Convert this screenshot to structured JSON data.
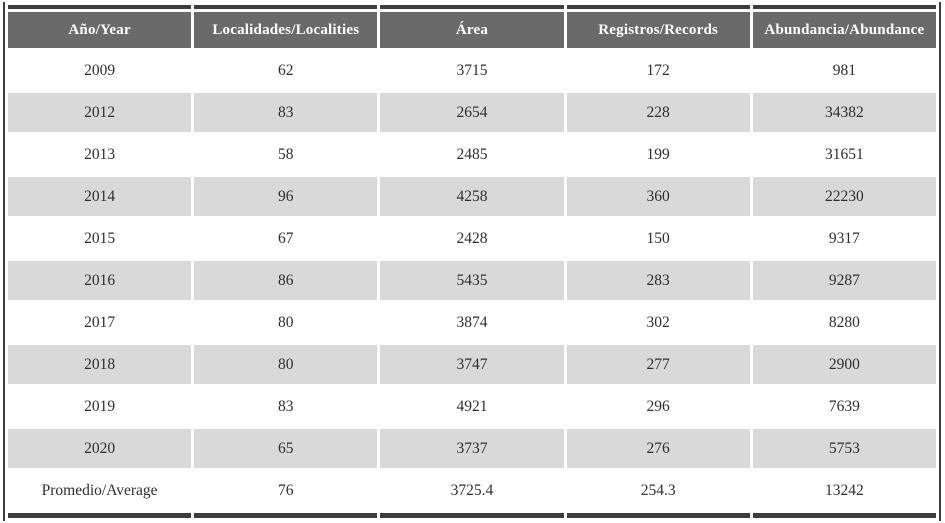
{
  "table": {
    "headers": [
      "Año/Year",
      "Localidades/Localities",
      "Área",
      "Registros/Records",
      "Abundancia/Abundance"
    ],
    "rows": [
      [
        "2009",
        "62",
        "3715",
        "172",
        "981"
      ],
      [
        "2012",
        "83",
        "2654",
        "228",
        "34382"
      ],
      [
        "2013",
        "58",
        "2485",
        "199",
        "31651"
      ],
      [
        "2014",
        "96",
        "4258",
        "360",
        "22230"
      ],
      [
        "2015",
        "67",
        "2428",
        "150",
        "9317"
      ],
      [
        "2016",
        "86",
        "5435",
        "283",
        "9287"
      ],
      [
        "2017",
        "80",
        "3874",
        "302",
        "8280"
      ],
      [
        "2018",
        "80",
        "3747",
        "277",
        "2900"
      ],
      [
        "2019",
        "83",
        "4921",
        "296",
        "7639"
      ],
      [
        "2020",
        "65",
        "3737",
        "276",
        "5753"
      ],
      [
        "Promedio/Average",
        "76",
        "3725.4",
        "254.3",
        "13242"
      ]
    ]
  },
  "colors": {
    "border_color": "#3d3d3d",
    "header_bg": "#6a6a6a",
    "header_text": "#ffffff",
    "row_alt_bg": "#d9d9d9",
    "row_bg": "#ffffff",
    "body_text": "#2e2e2e",
    "gap_color": "#ffffff"
  },
  "chart_data": {
    "type": "table",
    "columns": [
      "Año/Year",
      "Localidades/Localities",
      "Área",
      "Registros/Records",
      "Abundancia/Abundance"
    ],
    "rows": [
      {
        "year": "2009",
        "localities": 62,
        "area": 3715,
        "records": 172,
        "abundance": 981
      },
      {
        "year": "2012",
        "localities": 83,
        "area": 2654,
        "records": 228,
        "abundance": 34382
      },
      {
        "year": "2013",
        "localities": 58,
        "area": 2485,
        "records": 199,
        "abundance": 31651
      },
      {
        "year": "2014",
        "localities": 96,
        "area": 4258,
        "records": 360,
        "abundance": 22230
      },
      {
        "year": "2015",
        "localities": 67,
        "area": 2428,
        "records": 150,
        "abundance": 9317
      },
      {
        "year": "2016",
        "localities": 86,
        "area": 5435,
        "records": 283,
        "abundance": 9287
      },
      {
        "year": "2017",
        "localities": 80,
        "area": 3874,
        "records": 302,
        "abundance": 8280
      },
      {
        "year": "2018",
        "localities": 80,
        "area": 3747,
        "records": 277,
        "abundance": 2900
      },
      {
        "year": "2019",
        "localities": 83,
        "area": 4921,
        "records": 296,
        "abundance": 7639
      },
      {
        "year": "2020",
        "localities": 65,
        "area": 3737,
        "records": 276,
        "abundance": 5753
      },
      {
        "year": "Promedio/Average",
        "localities": 76,
        "area": 3725.4,
        "records": 254.3,
        "abundance": 13242
      }
    ]
  }
}
